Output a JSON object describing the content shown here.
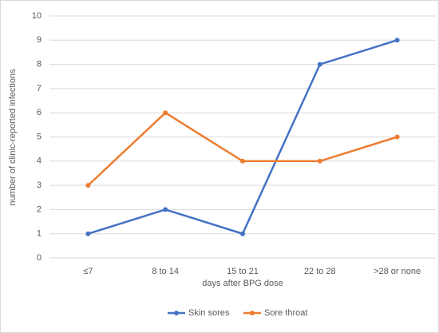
{
  "chart_data": {
    "type": "line",
    "xlabel": "days after BPG dose",
    "ylabel": "number of clinic-reported infections",
    "categories": [
      "≤7",
      "8 to 14",
      "15 to 21",
      "22 to 28",
      ">28 or none"
    ],
    "series": [
      {
        "name": "Skin sores",
        "color": "#4472c4",
        "values": [
          1,
          2,
          1,
          8,
          9
        ]
      },
      {
        "name": "Sore throat",
        "color": "#ed7d31",
        "values": [
          3,
          6,
          4,
          4,
          5
        ]
      }
    ],
    "ylim": [
      0,
      10
    ],
    "yticks": [
      0,
      1,
      2,
      3,
      4,
      5,
      6,
      7,
      8,
      9,
      10
    ],
    "grid": true,
    "legend": "bottom"
  }
}
